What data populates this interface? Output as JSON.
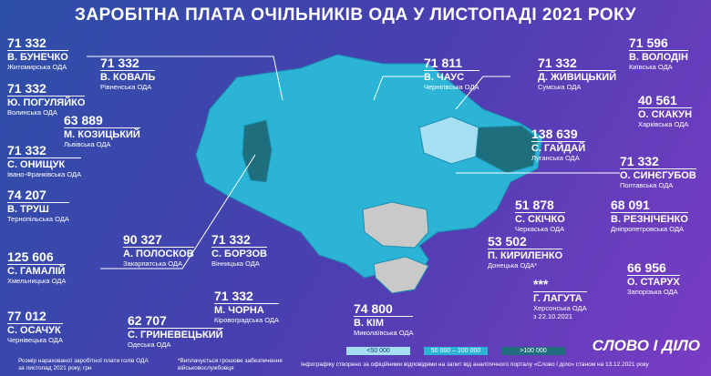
{
  "header": {
    "title": "ЗАРОБІТНА ПЛАТА ОЧІЛЬНИКІВ ОДА У ЛИСТОПАДІ 2021 РОКУ"
  },
  "entries": [
    {
      "value": "71 332",
      "name": "В. БУНЕЧКО",
      "region": "Житомирська ОДА"
    },
    {
      "value": "71 332",
      "name": "В. КОВАЛЬ",
      "region": "Рівненська ОДА"
    },
    {
      "value": "71 332",
      "name": "Ю. ПОГУЛЯЙКО",
      "region": "Волинська ОДА"
    },
    {
      "value": "63 889",
      "name": "М. КОЗИЦЬКИЙ",
      "region": "Львівська ОДА"
    },
    {
      "value": "71 332",
      "name": "С. ОНИЩУК",
      "region": "Івано-Франківська ОДА"
    },
    {
      "value": "74 207",
      "name": "В. ТРУШ",
      "region": "Тернопільська ОДА"
    },
    {
      "value": "125 606",
      "name": "С. ГАМАЛІЙ",
      "region": "Хмельницька ОДА"
    },
    {
      "value": "90 327",
      "name": "А. ПОЛОСКОВ",
      "region": "Закарпатська ОДА"
    },
    {
      "value": "71 332",
      "name": "С. БОРЗОВ",
      "region": "Вінницька ОДА"
    },
    {
      "value": "77 012",
      "name": "С. ОСАЧУК",
      "region": "Чернівецька ОДА"
    },
    {
      "value": "62 707",
      "name": "С. ГРИНЕВЕЦЬКИЙ",
      "region": "Одеська ОДА"
    },
    {
      "value": "71 332",
      "name": "М. ЧОРНА",
      "region": "Кіровоградська ОДА"
    },
    {
      "value": "74 800",
      "name": "В. КІМ",
      "region": "Миколаївська ОДА"
    },
    {
      "value": "***",
      "name": "Г. ЛАГУТА",
      "region": "Херсонська ОДА",
      "note": "з 22.10.2021"
    },
    {
      "value": "66 956",
      "name": "О. СТАРУХ",
      "region": "Запорізька ОДА"
    },
    {
      "value": "53 502",
      "name": "П. КИРИЛЕНКО",
      "region": "Донецька ОДА*"
    },
    {
      "value": "51 878",
      "name": "С. СКІЧКО",
      "region": "Черкаська ОДА"
    },
    {
      "value": "68 091",
      "name": "В. РЕЗНІЧЕНКО",
      "region": "Дніпропетровська ОДА"
    },
    {
      "value": "71 332",
      "name": "О. СИНЄГУБОВ",
      "region": "Полтавська ОДА"
    },
    {
      "value": "138 639",
      "name": "С. ГАЙДАЙ",
      "region": "Луганська ОДА"
    },
    {
      "value": "40 561",
      "name": "О. СКАКУН",
      "region": "Харківська ОДА"
    },
    {
      "value": "71 596",
      "name": "В. ВОЛОДІН",
      "region": "Київська ОДА"
    },
    {
      "value": "71 811",
      "name": "В. ЧАУС",
      "region": "Чернігівська ОДА"
    },
    {
      "value": "71 332",
      "name": "Д. ЖИВИЦЬКИЙ",
      "region": "Сумська ОДА"
    }
  ],
  "legend": [
    "<50 000",
    "50 000 – 100 000",
    ">100 000"
  ],
  "footer": {
    "caption": "Розмір нарахованої заробітної плати голів ОДА за листопад 2021 року, грн",
    "footnote": "*Виплачується грошове забезпечення військовослужбовця",
    "source": "Інфографіку створено за офіційними відповідями на запит від аналітичного порталу «Слово і діло» станом на 13.12.2021 року",
    "logo": "СЛОВО І ДІЛО"
  }
}
